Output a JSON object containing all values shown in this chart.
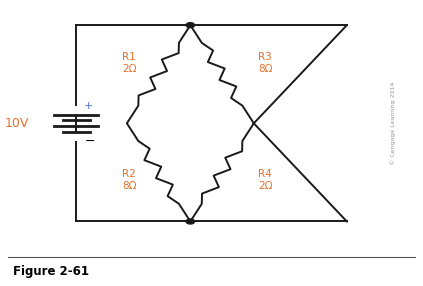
{
  "bg_color": "#ffffff",
  "line_color": "#1a1a1a",
  "label_color": "#e8702a",
  "text_color": "#000000",
  "plus_color": "#4472c4",
  "voltage_label": "10V",
  "plus_label": "+",
  "minus_label": "−",
  "r1_label": "R1\n2Ω",
  "r2_label": "R2\n8Ω",
  "r3_label": "R3\n8Ω",
  "r4_label": "R4\n2Ω",
  "fig_label": "Figure 2-61",
  "copyright": "© Cengage Learning 2014",
  "figsize": [
    4.23,
    2.86
  ],
  "dpi": 100
}
